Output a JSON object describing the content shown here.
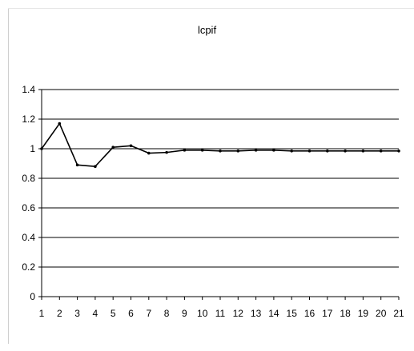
{
  "chart_data": {
    "type": "line",
    "title": "lcpif",
    "xlabel": "",
    "ylabel": "",
    "x": [
      1,
      2,
      3,
      4,
      5,
      6,
      7,
      8,
      9,
      10,
      11,
      12,
      13,
      14,
      15,
      16,
      17,
      18,
      19,
      20,
      21
    ],
    "series": [
      {
        "values": [
          1.0,
          1.17,
          0.89,
          0.88,
          1.01,
          1.02,
          0.97,
          0.975,
          0.99,
          0.99,
          0.985,
          0.985,
          0.99,
          0.99,
          0.985,
          0.985,
          0.985,
          0.985,
          0.985,
          0.985,
          0.985
        ]
      }
    ],
    "ylim": [
      0,
      1.4
    ],
    "yticks": [
      "0",
      "0.2",
      "0.4",
      "0.6",
      "0.8",
      "1",
      "1.2",
      "1.4"
    ],
    "xticks": [
      "1",
      "2",
      "3",
      "4",
      "5",
      "6",
      "7",
      "8",
      "9",
      "10",
      "11",
      "12",
      "13",
      "14",
      "15",
      "16",
      "17",
      "18",
      "19",
      "20",
      "21"
    ],
    "grid": true,
    "legend": "none",
    "colors": {
      "line": "#000000",
      "grid": "#000000",
      "axis": "#000000"
    }
  }
}
